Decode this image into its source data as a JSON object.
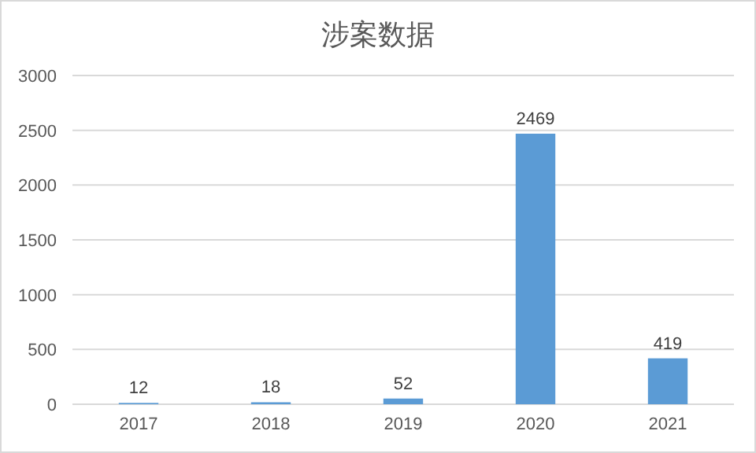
{
  "chart_data": {
    "type": "bar",
    "title": "涉案数据",
    "categories": [
      "2017",
      "2018",
      "2019",
      "2020",
      "2021"
    ],
    "values": [
      12,
      18,
      52,
      2469,
      419
    ],
    "color": "#5b9bd5",
    "ylim": [
      0,
      3000
    ],
    "yticks": [
      0,
      500,
      1000,
      1500,
      2000,
      2500,
      3000
    ],
    "grid": "y",
    "data_labels": true
  }
}
